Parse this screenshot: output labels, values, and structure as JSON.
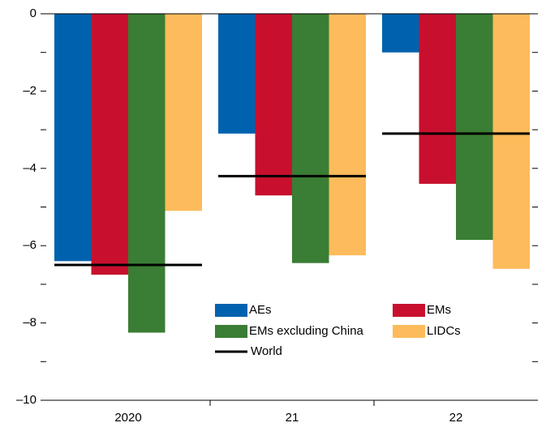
{
  "chart_data": {
    "type": "bar",
    "categories": [
      "2020",
      "21",
      "22"
    ],
    "series": [
      {
        "name": "AEs",
        "color": "#0062ae",
        "values": [
          -6.4,
          -3.1,
          -1.0
        ]
      },
      {
        "name": "EMs",
        "color": "#c8102e",
        "values": [
          -6.75,
          -4.7,
          -4.4
        ]
      },
      {
        "name": "EMs excluding China",
        "color": "#3a7d34",
        "values": [
          -8.25,
          -6.45,
          -5.85
        ]
      },
      {
        "name": "LIDCs",
        "color": "#fdbb5b",
        "values": [
          -5.1,
          -6.25,
          -6.6
        ]
      }
    ],
    "world": {
      "name": "World",
      "color": "#000000",
      "values": [
        -6.5,
        -4.2,
        -3.1
      ]
    },
    "ylim": [
      -10,
      0
    ],
    "yticks": [
      {
        "value": -10,
        "label": "–10"
      },
      {
        "value": -8,
        "label": "–8"
      },
      {
        "value": -6,
        "label": "–6"
      },
      {
        "value": -4,
        "label": "–4"
      },
      {
        "value": -2,
        "label": "–2"
      },
      0
    ],
    "minor_yticks": [
      -9,
      -7,
      -5,
      -3,
      -1
    ]
  }
}
